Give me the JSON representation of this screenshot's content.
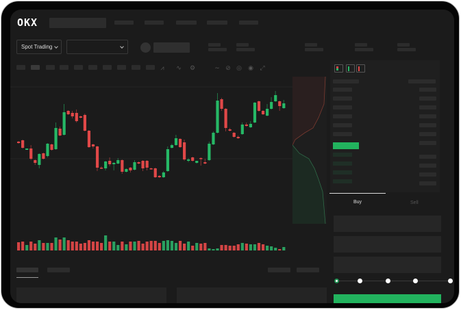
{
  "header": {
    "logo": "OKX"
  },
  "toolbar": {
    "market_type": "Spot Trading",
    "pair_select": ""
  },
  "trade_panel": {
    "buy_tab": "Buy",
    "sell_tab": "Sell",
    "leverage_steps": 5,
    "leverage_selected": 0
  },
  "colors": {
    "up": "#26b866",
    "down": "#e04848",
    "background": "#1b1b1b",
    "accent": "#22b35e"
  },
  "chart_data": {
    "type": "candlestick",
    "candles": [
      [
        65,
        66,
        62,
        63
      ],
      [
        67,
        68,
        55,
        56
      ],
      [
        53,
        55,
        53,
        55
      ],
      [
        55,
        60,
        38,
        40
      ],
      [
        38,
        39,
        31,
        34
      ],
      [
        31,
        48,
        26,
        47
      ],
      [
        48,
        49,
        39,
        40
      ],
      [
        44,
        63,
        42,
        62
      ],
      [
        61,
        62,
        52,
        53
      ],
      [
        54,
        93,
        53,
        85
      ],
      [
        84,
        87,
        73,
        74
      ],
      [
        75,
        120,
        74,
        108
      ],
      [
        110,
        111,
        104,
        105
      ],
      [
        107,
        110,
        99,
        102
      ],
      [
        107,
        112,
        93,
        95
      ],
      [
        102,
        103,
        99,
        100
      ],
      [
        104,
        106,
        80,
        81
      ],
      [
        81,
        82,
        56,
        57
      ],
      [
        61,
        62,
        55,
        58
      ],
      [
        58,
        59,
        22,
        27
      ],
      [
        27,
        29,
        25,
        26
      ],
      [
        26,
        37,
        23,
        36
      ],
      [
        37,
        42,
        29,
        32
      ],
      [
        32,
        35,
        23,
        34
      ],
      [
        33,
        41,
        32,
        38
      ],
      [
        38,
        39,
        18,
        21
      ],
      [
        21,
        26,
        20,
        25
      ],
      [
        27,
        28,
        20,
        23
      ],
      [
        24,
        38,
        23,
        35
      ],
      [
        35,
        36,
        32,
        33
      ],
      [
        37,
        38,
        22,
        26
      ],
      [
        37,
        38,
        23,
        27
      ],
      [
        26,
        27,
        24,
        25
      ],
      [
        26,
        27,
        12,
        13
      ],
      [
        15,
        16,
        12,
        13
      ],
      [
        13,
        22,
        12,
        20
      ],
      [
        22,
        58,
        21,
        54
      ],
      [
        56,
        62,
        55,
        60
      ],
      [
        60,
        75,
        59,
        70
      ],
      [
        69,
        70,
        56,
        57
      ],
      [
        64,
        68,
        37,
        39
      ],
      [
        37,
        41,
        35,
        39
      ],
      [
        42,
        43,
        36,
        37
      ],
      [
        34,
        37,
        33,
        37
      ],
      [
        41,
        42,
        30,
        40
      ],
      [
        35,
        40,
        32,
        33
      ],
      [
        38,
        65,
        37,
        62
      ],
      [
        61,
        80,
        60,
        78
      ],
      [
        78,
        136,
        77,
        125
      ],
      [
        127,
        129,
        110,
        113
      ],
      [
        113,
        114,
        80,
        85
      ],
      [
        83,
        85,
        80,
        81
      ],
      [
        78,
        79,
        71,
        72
      ],
      [
        72,
        74,
        69,
        70
      ],
      [
        76,
        93,
        75,
        90
      ],
      [
        90,
        93,
        87,
        88
      ],
      [
        86,
        95,
        85,
        91
      ],
      [
        93,
        123,
        92,
        122
      ],
      [
        124,
        125,
        109,
        110
      ],
      [
        110,
        111,
        104,
        105
      ],
      [
        103,
        120,
        102,
        113
      ],
      [
        113,
        130,
        112,
        123
      ],
      [
        124,
        139,
        123,
        133
      ],
      [
        124,
        125,
        110,
        117
      ],
      [
        114,
        126,
        113,
        121
      ]
    ],
    "volume": [
      12,
      13,
      8,
      13,
      10,
      15,
      11,
      11,
      11,
      19,
      16,
      19,
      15,
      13,
      13,
      10,
      11,
      15,
      13,
      13,
      11,
      22,
      13,
      13,
      8,
      13,
      9,
      13,
      13,
      14,
      10,
      13,
      14,
      14,
      11,
      14,
      15,
      14,
      11,
      14,
      10,
      13,
      7,
      11,
      10,
      11,
      3,
      2,
      3,
      8,
      8,
      7,
      7,
      9,
      11,
      10,
      9,
      9,
      11,
      9,
      7,
      6,
      4,
      2,
      5
    ]
  }
}
